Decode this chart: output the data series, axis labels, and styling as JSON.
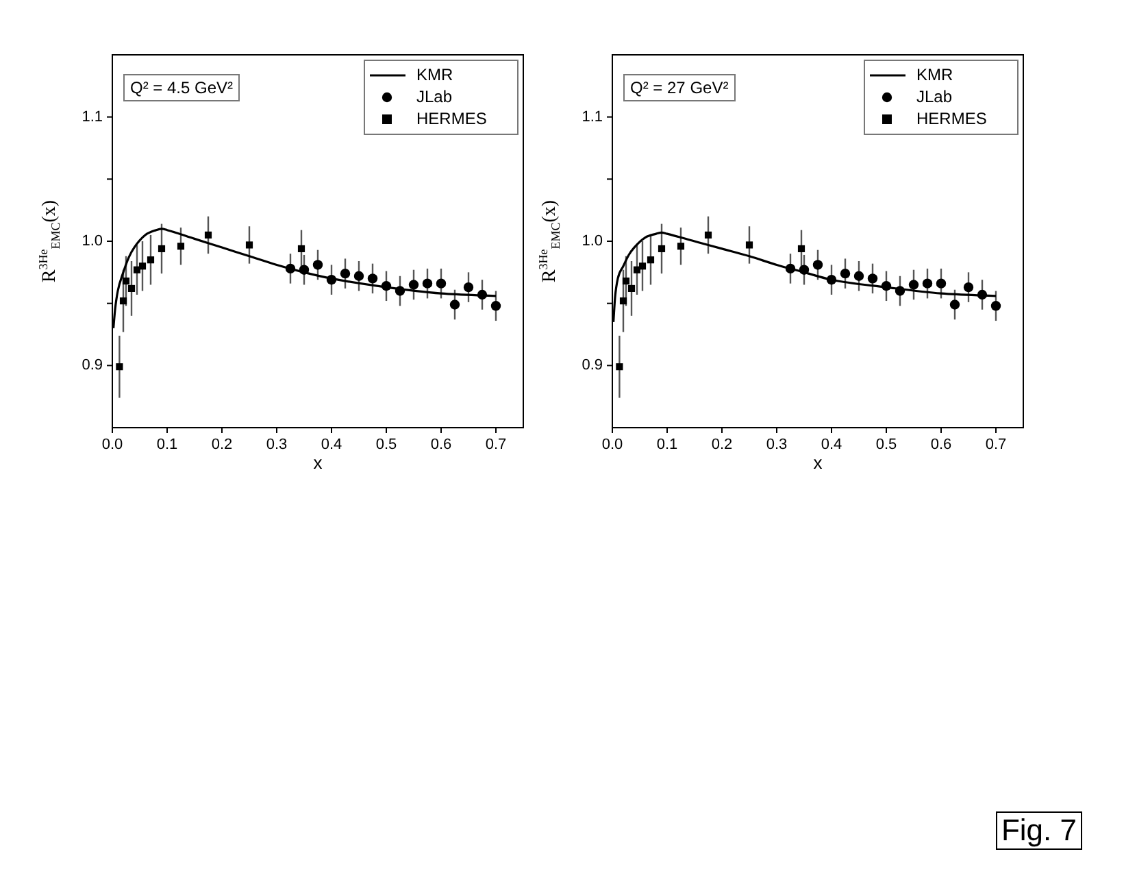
{
  "chart_data": [
    {
      "type": "scatter",
      "xlabel": "x",
      "ylabel": "R$^{3He}$$_{EMC}$(x)",
      "xlim": [
        0,
        0.75
      ],
      "xticks": [
        {
          "value": 0,
          "label": "0.0"
        },
        0.1,
        0.2,
        0.3,
        0.4,
        0.5,
        0.6,
        0.7
      ],
      "ylim": [
        0.85,
        1.15
      ],
      "yticks": [
        {
          "value": 0.9,
          "label": "0.9"
        },
        {
          "value": 0.95,
          "label": null
        },
        {
          "value": 1.0,
          "label": "1.0"
        },
        {
          "value": 1.05,
          "label": null
        },
        {
          "value": 1.1,
          "label": "1.1"
        }
      ],
      "grid": false,
      "legend": "top right",
      "annotations": [
        "Q² = 4.5 GeV²"
      ],
      "series": [
        {
          "name": "KMR",
          "type": "line",
          "color": "#000000",
          "marker": "none",
          "line_style": "solid",
          "x": [
            0.002,
            0.005,
            0.01,
            0.02,
            0.03,
            0.04,
            0.06,
            0.08,
            0.09,
            0.1,
            0.15,
            0.2,
            0.25,
            0.3,
            0.35,
            0.4,
            0.5,
            0.6,
            0.7
          ],
          "values": [
            0.93,
            0.945,
            0.96,
            0.975,
            0.987,
            0.995,
            1.005,
            1.009,
            1.01,
            1.009,
            1.002,
            0.995,
            0.988,
            0.981,
            0.975,
            0.97,
            0.963,
            0.958,
            0.956
          ]
        },
        {
          "name": "JLab",
          "type": "scatter",
          "color": "#000000",
          "marker": "circle",
          "x": [
            0.325,
            0.35,
            0.375,
            0.4,
            0.425,
            0.45,
            0.475,
            0.5,
            0.525,
            0.55,
            0.575,
            0.6,
            0.625,
            0.65,
            0.675,
            0.7
          ],
          "values": [
            0.978,
            0.977,
            0.981,
            0.969,
            0.974,
            0.972,
            0.97,
            0.964,
            0.96,
            0.965,
            0.966,
            0.966,
            0.949,
            0.963,
            0.957,
            0.948
          ],
          "errors": [
            0.012,
            0.012,
            0.012,
            0.012,
            0.012,
            0.012,
            0.012,
            0.012,
            0.012,
            0.012,
            0.012,
            0.012,
            0.012,
            0.012,
            0.012,
            0.012
          ]
        },
        {
          "name": "HERMES",
          "type": "scatter",
          "color": "#000000",
          "marker": "square",
          "x": [
            0.013,
            0.02,
            0.025,
            0.035,
            0.045,
            0.055,
            0.07,
            0.09,
            0.125,
            0.175,
            0.25,
            0.345
          ],
          "values": [
            0.899,
            0.952,
            0.968,
            0.962,
            0.977,
            0.98,
            0.985,
            0.994,
            0.996,
            1.005,
            0.997,
            0.994
          ],
          "errors": [
            0.025,
            0.025,
            0.02,
            0.022,
            0.02,
            0.02,
            0.02,
            0.02,
            0.015,
            0.015,
            0.015,
            0.015
          ]
        }
      ]
    },
    {
      "type": "scatter",
      "xlabel": "x",
      "ylabel": "R$^{3He}$$_{EMC}$(x)",
      "xlim": [
        0,
        0.75
      ],
      "xticks": [
        {
          "value": 0,
          "label": "0.0"
        },
        0.1,
        0.2,
        0.3,
        0.4,
        0.5,
        0.6,
        0.7
      ],
      "ylim": [
        0.85,
        1.15
      ],
      "yticks": [
        {
          "value": 0.9,
          "label": "0.9"
        },
        {
          "value": 0.95,
          "label": null
        },
        {
          "value": 1.0,
          "label": "1.0"
        },
        {
          "value": 1.05,
          "label": null
        },
        {
          "value": 1.1,
          "label": "1.1"
        }
      ],
      "grid": false,
      "legend": "top right",
      "annotations": [
        "Q² = 27 GeV²",
        "Fig. 7"
      ],
      "series": [
        {
          "name": "KMR",
          "type": "line",
          "color": "#000000",
          "marker": "none",
          "line_style": "solid",
          "x": [
            0.002,
            0.005,
            0.01,
            0.02,
            0.03,
            0.04,
            0.06,
            0.08,
            0.09,
            0.1,
            0.15,
            0.2,
            0.25,
            0.3,
            0.35,
            0.4,
            0.5,
            0.6,
            0.7
          ],
          "values": [
            0.935,
            0.955,
            0.97,
            0.98,
            0.989,
            0.995,
            1.003,
            1.006,
            1.007,
            1.006,
            1.0,
            0.994,
            0.988,
            0.981,
            0.975,
            0.969,
            0.963,
            0.958,
            0.956
          ]
        },
        {
          "name": "JLab",
          "type": "scatter",
          "color": "#000000",
          "marker": "circle",
          "x": [
            0.325,
            0.35,
            0.375,
            0.4,
            0.425,
            0.45,
            0.475,
            0.5,
            0.525,
            0.55,
            0.575,
            0.6,
            0.625,
            0.65,
            0.675,
            0.7
          ],
          "values": [
            0.978,
            0.977,
            0.981,
            0.969,
            0.974,
            0.972,
            0.97,
            0.964,
            0.96,
            0.965,
            0.966,
            0.966,
            0.949,
            0.963,
            0.957,
            0.948
          ],
          "errors": [
            0.012,
            0.012,
            0.012,
            0.012,
            0.012,
            0.012,
            0.012,
            0.012,
            0.012,
            0.012,
            0.012,
            0.012,
            0.012,
            0.012,
            0.012,
            0.012
          ]
        },
        {
          "name": "HERMES",
          "type": "scatter",
          "color": "#000000",
          "marker": "square",
          "x": [
            0.013,
            0.02,
            0.025,
            0.035,
            0.045,
            0.055,
            0.07,
            0.09,
            0.125,
            0.175,
            0.25,
            0.345
          ],
          "values": [
            0.899,
            0.952,
            0.968,
            0.962,
            0.977,
            0.98,
            0.985,
            0.994,
            0.996,
            1.005,
            0.997,
            0.994
          ],
          "errors": [
            0.025,
            0.025,
            0.02,
            0.022,
            0.02,
            0.02,
            0.02,
            0.02,
            0.015,
            0.015,
            0.015,
            0.015
          ]
        }
      ]
    }
  ]
}
